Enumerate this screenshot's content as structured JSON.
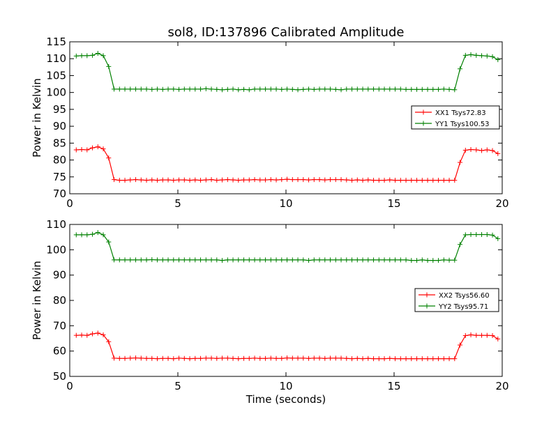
{
  "title": "sol8, ID:137896 Calibrated Amplitude",
  "chart_data": [
    {
      "type": "line",
      "title": "sol8, ID:137896 Calibrated Amplitude",
      "xlabel": "",
      "ylabel": "Power in Kelvin",
      "xlim": [
        0,
        20
      ],
      "ylim": [
        70,
        115
      ],
      "xticks": [
        "0",
        "5",
        "10",
        "15",
        "20"
      ],
      "yticks": [
        "70",
        "75",
        "80",
        "85",
        "90",
        "95",
        "100",
        "105",
        "110",
        "115"
      ],
      "grid": false,
      "legend_position": "right",
      "x": [
        0.3,
        0.55,
        0.8,
        1.05,
        1.3,
        1.55,
        1.8,
        2.05,
        2.3,
        2.55,
        2.8,
        3.05,
        3.3,
        3.55,
        3.8,
        4.05,
        4.3,
        4.55,
        4.8,
        5.05,
        5.3,
        5.55,
        5.8,
        6.05,
        6.3,
        6.55,
        6.8,
        7.05,
        7.3,
        7.55,
        7.8,
        8.05,
        8.3,
        8.55,
        8.8,
        9.05,
        9.3,
        9.55,
        9.8,
        10.05,
        10.3,
        10.55,
        10.8,
        11.05,
        11.3,
        11.55,
        11.8,
        12.05,
        12.3,
        12.55,
        12.8,
        13.05,
        13.3,
        13.55,
        13.8,
        14.05,
        14.3,
        14.55,
        14.8,
        15.05,
        15.3,
        15.55,
        15.8,
        16.05,
        16.3,
        16.55,
        16.8,
        17.05,
        17.3,
        17.55,
        17.8,
        18.05,
        18.3,
        18.55,
        18.8,
        19.05,
        19.3,
        19.55,
        19.8
      ],
      "series": [
        {
          "name": "XX1 Tsys72.83",
          "color": "#ff0000",
          "values": [
            83.0,
            83.1,
            83.0,
            83.6,
            83.9,
            83.3,
            80.6,
            74.2,
            74.0,
            74.0,
            74.1,
            74.2,
            74.1,
            74.0,
            74.1,
            74.0,
            74.1,
            74.1,
            74.0,
            74.1,
            74.1,
            74.0,
            74.1,
            74.0,
            74.1,
            74.2,
            74.0,
            74.1,
            74.2,
            74.1,
            74.0,
            74.1,
            74.1,
            74.2,
            74.1,
            74.1,
            74.2,
            74.1,
            74.2,
            74.3,
            74.2,
            74.2,
            74.2,
            74.1,
            74.2,
            74.2,
            74.1,
            74.2,
            74.2,
            74.2,
            74.1,
            74.0,
            74.1,
            74.0,
            74.1,
            74.0,
            74.0,
            74.0,
            74.1,
            74.0,
            74.0,
            74.0,
            74.0,
            74.0,
            74.0,
            74.0,
            74.0,
            74.0,
            74.0,
            74.0,
            74.0,
            79.3,
            82.9,
            83.1,
            83.0,
            82.8,
            83.0,
            82.8,
            81.9
          ]
        },
        {
          "name": "YY1 Tsys100.53",
          "color": "#008000",
          "values": [
            110.8,
            110.9,
            110.9,
            111.0,
            111.6,
            110.9,
            107.7,
            101.0,
            101.0,
            101.0,
            101.0,
            101.0,
            101.0,
            101.0,
            100.9,
            101.0,
            100.9,
            101.0,
            101.0,
            100.9,
            101.0,
            101.0,
            101.0,
            101.0,
            101.1,
            101.0,
            100.9,
            100.8,
            100.9,
            101.0,
            100.8,
            100.9,
            100.8,
            101.0,
            101.0,
            101.0,
            101.0,
            101.0,
            100.9,
            101.0,
            100.9,
            100.8,
            100.9,
            101.0,
            100.9,
            101.0,
            101.0,
            101.0,
            100.9,
            100.8,
            101.0,
            101.0,
            101.0,
            101.0,
            101.0,
            101.0,
            101.0,
            101.0,
            101.0,
            101.0,
            101.0,
            100.9,
            100.9,
            100.9,
            100.9,
            100.9,
            100.9,
            100.9,
            101.0,
            100.9,
            100.8,
            107.0,
            111.0,
            111.2,
            111.0,
            110.9,
            110.8,
            110.6,
            109.7
          ]
        }
      ]
    },
    {
      "type": "line",
      "title": "",
      "xlabel": "Time (seconds)",
      "ylabel": "Power in Kelvin",
      "xlim": [
        0,
        20
      ],
      "ylim": [
        50,
        110
      ],
      "xticks": [
        "0",
        "5",
        "10",
        "15",
        "20"
      ],
      "yticks": [
        "50",
        "60",
        "70",
        "80",
        "90",
        "100",
        "110"
      ],
      "grid": false,
      "legend_position": "right",
      "x": [
        0.3,
        0.55,
        0.8,
        1.05,
        1.3,
        1.55,
        1.8,
        2.05,
        2.3,
        2.55,
        2.8,
        3.05,
        3.3,
        3.55,
        3.8,
        4.05,
        4.3,
        4.55,
        4.8,
        5.05,
        5.3,
        5.55,
        5.8,
        6.05,
        6.3,
        6.55,
        6.8,
        7.05,
        7.3,
        7.55,
        7.8,
        8.05,
        8.3,
        8.55,
        8.8,
        9.05,
        9.3,
        9.55,
        9.8,
        10.05,
        10.3,
        10.55,
        10.8,
        11.05,
        11.3,
        11.55,
        11.8,
        12.05,
        12.3,
        12.55,
        12.8,
        13.05,
        13.3,
        13.55,
        13.8,
        14.05,
        14.3,
        14.55,
        14.8,
        15.05,
        15.3,
        15.55,
        15.8,
        16.05,
        16.3,
        16.55,
        16.8,
        17.05,
        17.3,
        17.55,
        17.8,
        18.05,
        18.3,
        18.55,
        18.8,
        19.05,
        19.3,
        19.55,
        19.8
      ],
      "series": [
        {
          "name": "XX2 Tsys56.60",
          "color": "#ff0000",
          "values": [
            66.2,
            66.3,
            66.2,
            66.8,
            67.1,
            66.4,
            63.7,
            57.2,
            57.1,
            57.1,
            57.2,
            57.3,
            57.2,
            57.1,
            57.1,
            57.0,
            57.1,
            57.1,
            57.0,
            57.2,
            57.1,
            57.0,
            57.1,
            57.1,
            57.2,
            57.2,
            57.1,
            57.2,
            57.2,
            57.1,
            57.0,
            57.1,
            57.1,
            57.2,
            57.1,
            57.1,
            57.2,
            57.1,
            57.1,
            57.3,
            57.2,
            57.2,
            57.2,
            57.1,
            57.2,
            57.2,
            57.1,
            57.2,
            57.2,
            57.2,
            57.1,
            57.0,
            57.1,
            57.0,
            57.1,
            57.0,
            57.0,
            57.0,
            57.1,
            57.0,
            57.0,
            57.0,
            57.0,
            57.0,
            57.0,
            57.0,
            57.0,
            57.0,
            57.0,
            57.0,
            57.0,
            62.4,
            66.1,
            66.4,
            66.2,
            66.2,
            66.2,
            66.1,
            64.8
          ]
        },
        {
          "name": "YY2 Tsys95.71",
          "color": "#008000",
          "values": [
            105.9,
            105.9,
            105.9,
            106.1,
            106.8,
            105.9,
            103.1,
            96.0,
            96.0,
            96.0,
            96.0,
            96.0,
            96.0,
            96.0,
            96.1,
            96.0,
            96.0,
            96.0,
            96.0,
            96.0,
            96.0,
            96.0,
            96.0,
            96.0,
            96.0,
            96.0,
            96.0,
            95.8,
            96.0,
            96.0,
            96.0,
            96.0,
            96.0,
            96.0,
            96.0,
            96.0,
            96.0,
            96.0,
            96.0,
            96.0,
            96.0,
            96.0,
            96.0,
            95.8,
            96.0,
            96.0,
            96.0,
            96.0,
            96.0,
            96.0,
            96.0,
            96.0,
            96.0,
            96.0,
            96.0,
            96.0,
            96.0,
            96.0,
            96.0,
            96.0,
            96.0,
            96.0,
            95.8,
            95.8,
            96.0,
            95.8,
            95.8,
            95.8,
            96.0,
            95.9,
            95.9,
            102.1,
            105.9,
            106.0,
            106.0,
            106.0,
            106.0,
            105.8,
            104.4
          ]
        }
      ]
    }
  ]
}
